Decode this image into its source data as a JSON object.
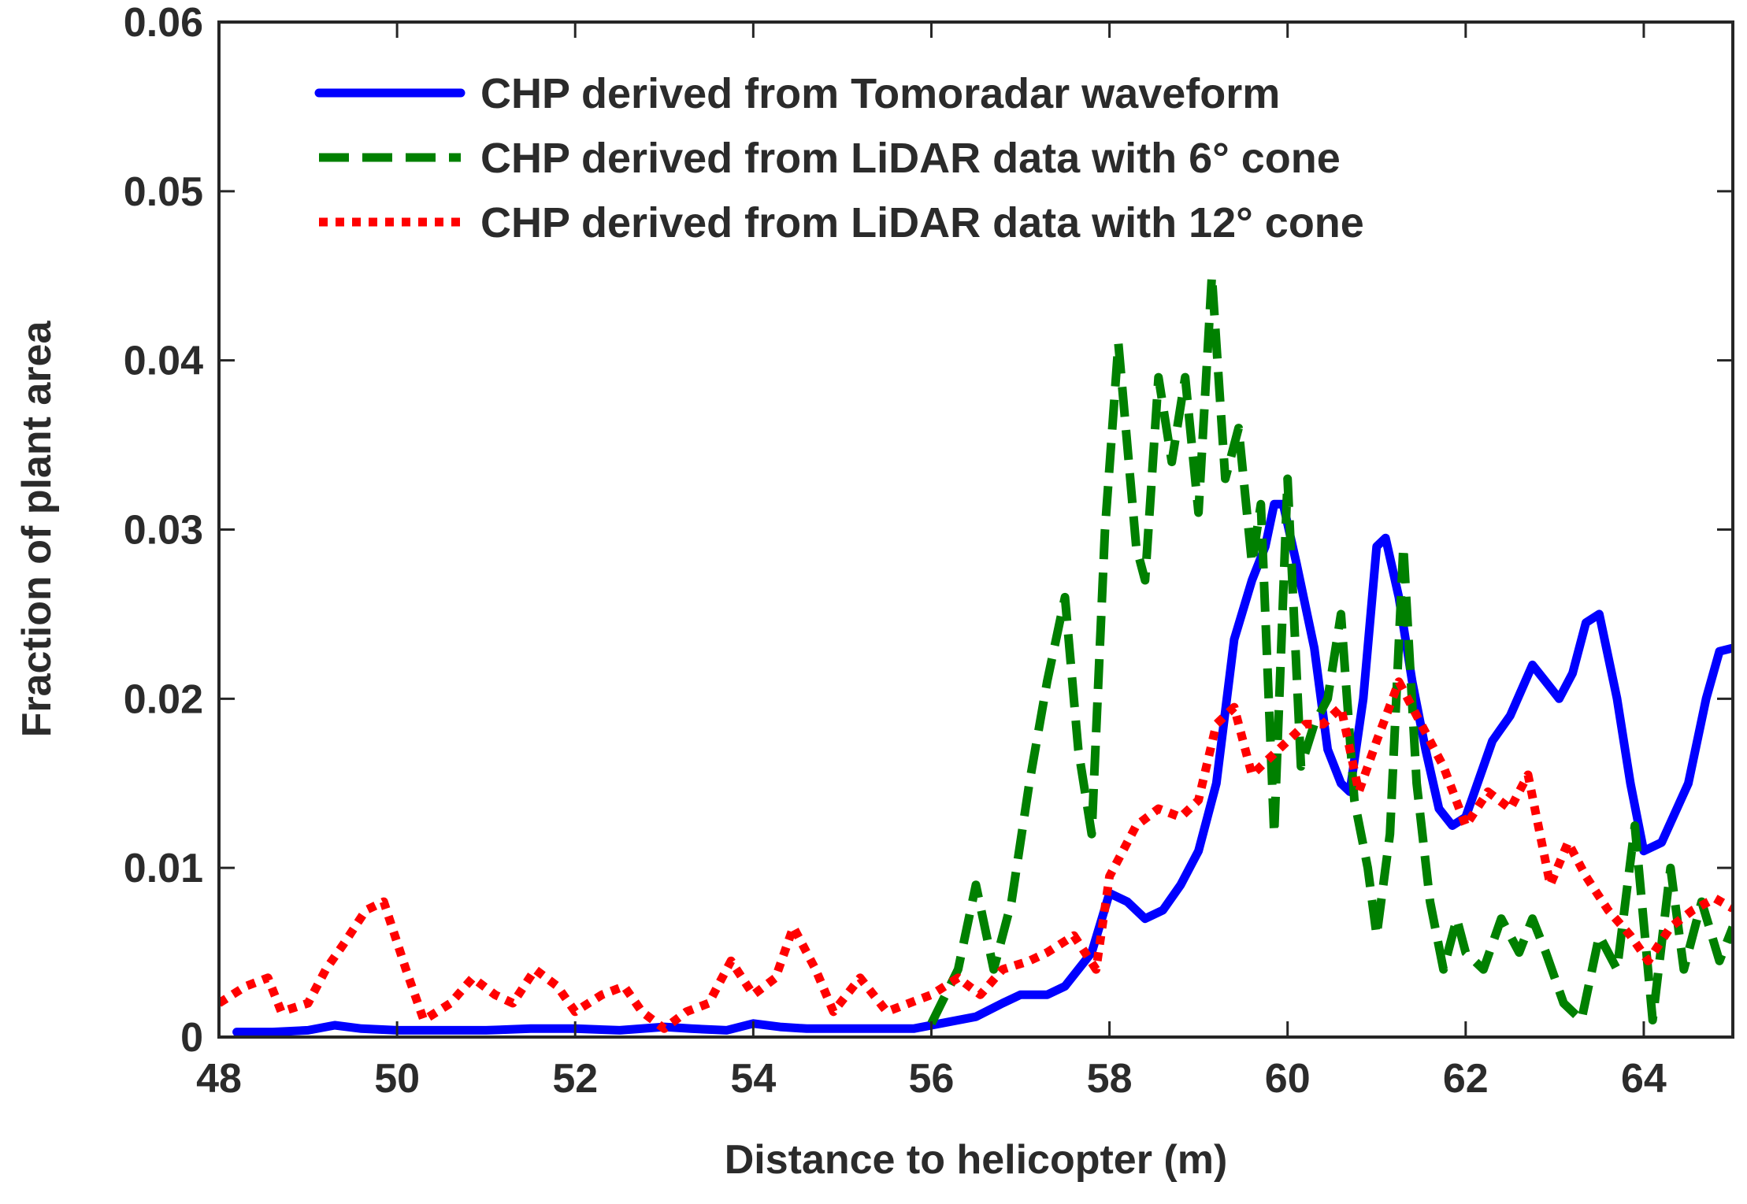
{
  "chart_data": {
    "type": "line",
    "title": "",
    "xlabel": "Distance to helicopter (m)",
    "ylabel": "Fraction of plant area",
    "xlim": [
      48,
      65
    ],
    "ylim": [
      0,
      0.06
    ],
    "xticks": [
      48,
      50,
      52,
      54,
      56,
      58,
      60,
      62,
      64
    ],
    "xtick_labels": [
      "48",
      "50",
      "52",
      "54",
      "56",
      "58",
      "60",
      "62",
      "64"
    ],
    "yticks": [
      0,
      0.01,
      0.02,
      0.03,
      0.04,
      0.05,
      0.06
    ],
    "ytick_labels": [
      "0",
      "0.01",
      "0.02",
      "0.03",
      "0.04",
      "0.05",
      "0.06"
    ],
    "grid": false,
    "legend_position": "top-left",
    "series": [
      {
        "name": "CHP derived from Tomoradar waveform",
        "color": "#0000ff",
        "style": "solid",
        "points": [
          [
            48.2,
            0.0003
          ],
          [
            48.6,
            0.0003
          ],
          [
            49.0,
            0.0004
          ],
          [
            49.3,
            0.0007
          ],
          [
            49.6,
            0.0005
          ],
          [
            50.0,
            0.0004
          ],
          [
            50.5,
            0.0004
          ],
          [
            51.0,
            0.0004
          ],
          [
            51.5,
            0.0005
          ],
          [
            52.0,
            0.0005
          ],
          [
            52.5,
            0.0004
          ],
          [
            53.0,
            0.0006
          ],
          [
            53.3,
            0.0005
          ],
          [
            53.7,
            0.0004
          ],
          [
            54.0,
            0.0008
          ],
          [
            54.3,
            0.0006
          ],
          [
            54.6,
            0.0005
          ],
          [
            55.0,
            0.0005
          ],
          [
            55.5,
            0.0005
          ],
          [
            55.8,
            0.0005
          ],
          [
            56.1,
            0.0008
          ],
          [
            56.5,
            0.0012
          ],
          [
            56.8,
            0.002
          ],
          [
            57.0,
            0.0025
          ],
          [
            57.3,
            0.0025
          ],
          [
            57.5,
            0.003
          ],
          [
            57.8,
            0.005
          ],
          [
            58.0,
            0.0085
          ],
          [
            58.2,
            0.008
          ],
          [
            58.4,
            0.007
          ],
          [
            58.6,
            0.0075
          ],
          [
            58.8,
            0.009
          ],
          [
            59.0,
            0.011
          ],
          [
            59.2,
            0.015
          ],
          [
            59.4,
            0.0235
          ],
          [
            59.6,
            0.027
          ],
          [
            59.75,
            0.029
          ],
          [
            59.85,
            0.0315
          ],
          [
            59.95,
            0.0315
          ],
          [
            60.1,
            0.028
          ],
          [
            60.3,
            0.023
          ],
          [
            60.45,
            0.017
          ],
          [
            60.6,
            0.015
          ],
          [
            60.7,
            0.0145
          ],
          [
            60.85,
            0.02
          ],
          [
            61.0,
            0.029
          ],
          [
            61.1,
            0.0295
          ],
          [
            61.25,
            0.026
          ],
          [
            61.4,
            0.021
          ],
          [
            61.55,
            0.017
          ],
          [
            61.7,
            0.0135
          ],
          [
            61.85,
            0.0125
          ],
          [
            62.0,
            0.013
          ],
          [
            62.3,
            0.0175
          ],
          [
            62.5,
            0.019
          ],
          [
            62.75,
            0.022
          ],
          [
            62.9,
            0.021
          ],
          [
            63.05,
            0.02
          ],
          [
            63.2,
            0.0215
          ],
          [
            63.35,
            0.0245
          ],
          [
            63.5,
            0.025
          ],
          [
            63.7,
            0.02
          ],
          [
            63.85,
            0.015
          ],
          [
            64.0,
            0.011
          ],
          [
            64.2,
            0.0115
          ],
          [
            64.5,
            0.015
          ],
          [
            64.7,
            0.02
          ],
          [
            64.85,
            0.0228
          ],
          [
            65.0,
            0.023
          ]
        ]
      },
      {
        "name": "CHP derived from LiDAR data with 6° cone",
        "color": "#008000",
        "style": "dashed",
        "points": [
          [
            56.0,
            0.0008
          ],
          [
            56.3,
            0.004
          ],
          [
            56.5,
            0.009
          ],
          [
            56.7,
            0.004
          ],
          [
            56.9,
            0.008
          ],
          [
            57.1,
            0.015
          ],
          [
            57.3,
            0.021
          ],
          [
            57.5,
            0.026
          ],
          [
            57.65,
            0.017
          ],
          [
            57.8,
            0.012
          ],
          [
            57.95,
            0.03
          ],
          [
            58.1,
            0.041
          ],
          [
            58.3,
            0.029
          ],
          [
            58.4,
            0.027
          ],
          [
            58.55,
            0.039
          ],
          [
            58.7,
            0.034
          ],
          [
            58.85,
            0.039
          ],
          [
            59.0,
            0.031
          ],
          [
            59.15,
            0.045
          ],
          [
            59.3,
            0.033
          ],
          [
            59.45,
            0.036
          ],
          [
            59.6,
            0.028
          ],
          [
            59.7,
            0.0315
          ],
          [
            59.85,
            0.012
          ],
          [
            60.0,
            0.033
          ],
          [
            60.15,
            0.016
          ],
          [
            60.3,
            0.0185
          ],
          [
            60.45,
            0.02
          ],
          [
            60.6,
            0.025
          ],
          [
            60.75,
            0.014
          ],
          [
            60.9,
            0.01
          ],
          [
            61.0,
            0.006
          ],
          [
            61.15,
            0.012
          ],
          [
            61.3,
            0.029
          ],
          [
            61.45,
            0.015
          ],
          [
            61.6,
            0.008
          ],
          [
            61.75,
            0.004
          ],
          [
            61.9,
            0.007
          ],
          [
            62.0,
            0.005
          ],
          [
            62.2,
            0.004
          ],
          [
            62.4,
            0.007
          ],
          [
            62.6,
            0.005
          ],
          [
            62.75,
            0.007
          ],
          [
            62.9,
            0.005
          ],
          [
            63.1,
            0.002
          ],
          [
            63.3,
            0.001
          ],
          [
            63.5,
            0.006
          ],
          [
            63.7,
            0.004
          ],
          [
            63.9,
            0.0125
          ],
          [
            64.1,
            0.001
          ],
          [
            64.3,
            0.01
          ],
          [
            64.45,
            0.004
          ],
          [
            64.65,
            0.008
          ],
          [
            64.85,
            0.0045
          ],
          [
            65.0,
            0.0065
          ]
        ]
      },
      {
        "name": "CHP derived from LiDAR data with 12° cone",
        "color": "#ff0000",
        "style": "dotted",
        "points": [
          [
            48.0,
            0.002
          ],
          [
            48.3,
            0.003
          ],
          [
            48.55,
            0.0035
          ],
          [
            48.7,
            0.0015
          ],
          [
            49.0,
            0.002
          ],
          [
            49.2,
            0.004
          ],
          [
            49.4,
            0.0055
          ],
          [
            49.65,
            0.0075
          ],
          [
            49.85,
            0.008
          ],
          [
            50.1,
            0.004
          ],
          [
            50.3,
            0.001
          ],
          [
            50.6,
            0.002
          ],
          [
            50.85,
            0.0035
          ],
          [
            51.1,
            0.0025
          ],
          [
            51.3,
            0.002
          ],
          [
            51.55,
            0.004
          ],
          [
            51.8,
            0.003
          ],
          [
            52.0,
            0.0015
          ],
          [
            52.3,
            0.0025
          ],
          [
            52.55,
            0.003
          ],
          [
            52.75,
            0.0015
          ],
          [
            53.0,
            0.0005
          ],
          [
            53.25,
            0.0015
          ],
          [
            53.5,
            0.002
          ],
          [
            53.75,
            0.0045
          ],
          [
            54.0,
            0.0025
          ],
          [
            54.25,
            0.0035
          ],
          [
            54.45,
            0.0065
          ],
          [
            54.7,
            0.004
          ],
          [
            54.9,
            0.0015
          ],
          [
            55.2,
            0.0035
          ],
          [
            55.5,
            0.0015
          ],
          [
            55.75,
            0.002
          ],
          [
            56.0,
            0.0025
          ],
          [
            56.3,
            0.0035
          ],
          [
            56.55,
            0.0025
          ],
          [
            56.8,
            0.004
          ],
          [
            57.1,
            0.0045
          ],
          [
            57.3,
            0.005
          ],
          [
            57.6,
            0.006
          ],
          [
            57.85,
            0.004
          ],
          [
            58.0,
            0.0095
          ],
          [
            58.3,
            0.0125
          ],
          [
            58.55,
            0.0135
          ],
          [
            58.8,
            0.013
          ],
          [
            59.0,
            0.014
          ],
          [
            59.2,
            0.0185
          ],
          [
            59.4,
            0.0195
          ],
          [
            59.6,
            0.0155
          ],
          [
            59.8,
            0.0165
          ],
          [
            60.0,
            0.0175
          ],
          [
            60.2,
            0.0185
          ],
          [
            60.4,
            0.0185
          ],
          [
            60.6,
            0.0195
          ],
          [
            60.8,
            0.0145
          ],
          [
            61.0,
            0.0175
          ],
          [
            61.25,
            0.021
          ],
          [
            61.5,
            0.0185
          ],
          [
            61.75,
            0.016
          ],
          [
            62.0,
            0.0125
          ],
          [
            62.25,
            0.0145
          ],
          [
            62.5,
            0.0135
          ],
          [
            62.7,
            0.0155
          ],
          [
            62.95,
            0.009
          ],
          [
            63.15,
            0.0115
          ],
          [
            63.35,
            0.0095
          ],
          [
            63.6,
            0.0075
          ],
          [
            63.85,
            0.006
          ],
          [
            64.05,
            0.0045
          ],
          [
            64.3,
            0.0065
          ],
          [
            64.55,
            0.0075
          ],
          [
            64.8,
            0.0082
          ],
          [
            65.0,
            0.0076
          ]
        ]
      }
    ]
  }
}
